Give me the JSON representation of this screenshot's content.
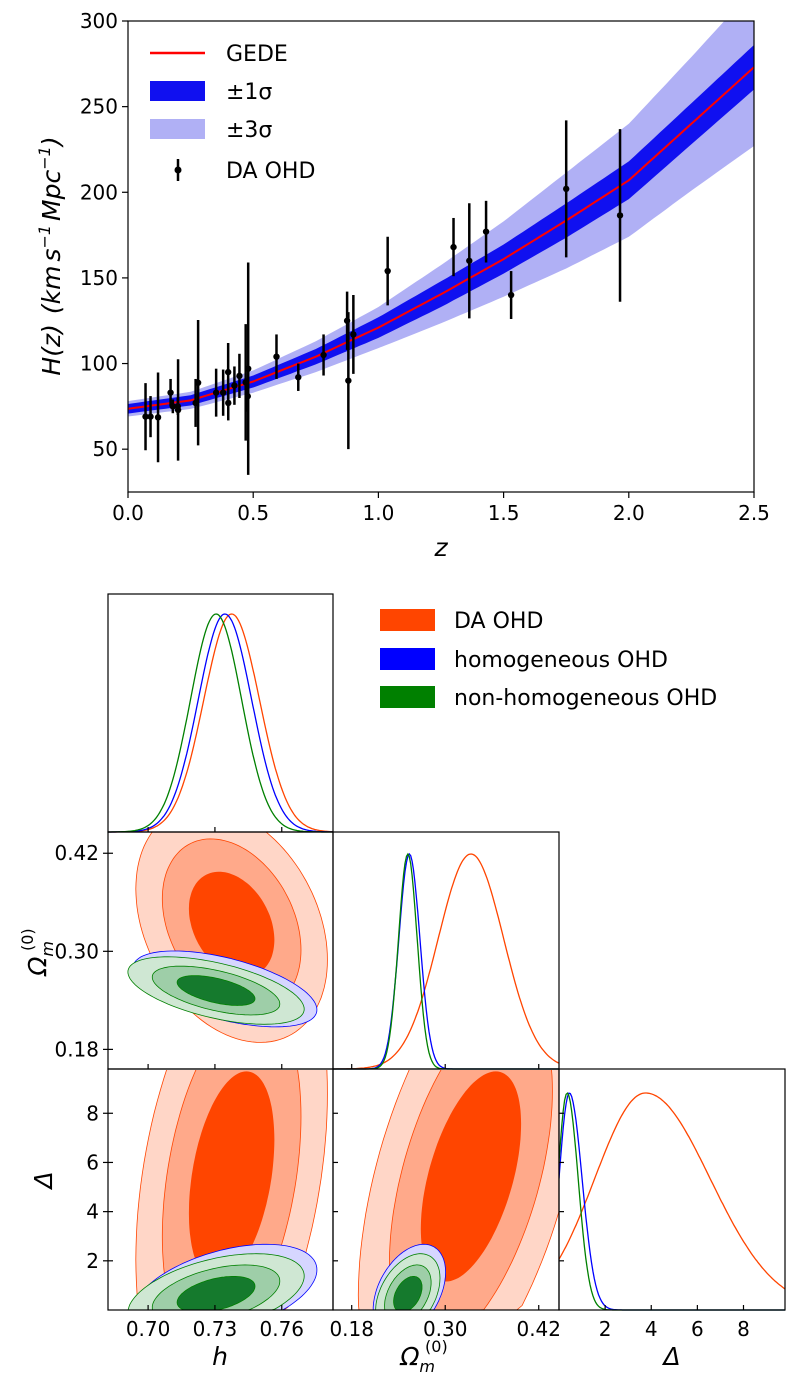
{
  "chart_data": [
    {
      "type": "line",
      "title": "",
      "xlabel": "z",
      "ylabel": "H(z) (km s^-1 Mpc^-1)",
      "ylabel_parts": [
        "H(z)",
        "(",
        "km",
        "s",
        "−1",
        "Mpc",
        "−1",
        ")"
      ],
      "xlim": [
        0.0,
        2.5
      ],
      "ylim": [
        25,
        300
      ],
      "xticks": [
        "0.0",
        "0.5",
        "1.0",
        "1.5",
        "2.0",
        "2.5"
      ],
      "yticks": [
        "50",
        "100",
        "150",
        "200",
        "250",
        "300"
      ],
      "legend_position": "top-left",
      "legend": [
        {
          "label": "GEDE",
          "kind": "line",
          "color": "#ff0000"
        },
        {
          "label": "±1σ",
          "kind": "patch",
          "color": "#1010f0"
        },
        {
          "label": "±3σ",
          "kind": "patch",
          "color": "#b0b0f5"
        },
        {
          "label": "DA OHD",
          "kind": "errorbar",
          "color": "#000000"
        }
      ],
      "model": {
        "z": [
          0.0,
          0.25,
          0.5,
          0.75,
          1.0,
          1.25,
          1.5,
          1.75,
          2.0,
          2.25,
          2.5
        ],
        "H": [
          73.6,
          78.5,
          89.5,
          104,
          121,
          140.5,
          161,
          183.5,
          207,
          240,
          273
        ],
        "sigma1_half_width": [
          2.8,
          3.0,
          3.5,
          4.5,
          6,
          7.5,
          8.5,
          10,
          11,
          12,
          13
        ],
        "sigma3_half_width": [
          4.5,
          5.0,
          6.5,
          9,
          12,
          17,
          22,
          28,
          33,
          39,
          46
        ]
      },
      "ohd_points": [
        {
          "z": 0.07,
          "H": 69,
          "err": 19.6
        },
        {
          "z": 0.09,
          "H": 69,
          "err": 12
        },
        {
          "z": 0.12,
          "H": 68.6,
          "err": 26.2
        },
        {
          "z": 0.17,
          "H": 83,
          "err": 8
        },
        {
          "z": 0.179,
          "H": 75,
          "err": 4
        },
        {
          "z": 0.199,
          "H": 75,
          "err": 5
        },
        {
          "z": 0.2,
          "H": 72.9,
          "err": 29.6
        },
        {
          "z": 0.27,
          "H": 77,
          "err": 14
        },
        {
          "z": 0.28,
          "H": 88.8,
          "err": 36.6
        },
        {
          "z": 0.352,
          "H": 83,
          "err": 14
        },
        {
          "z": 0.38,
          "H": 83,
          "err": 13.5
        },
        {
          "z": 0.4,
          "H": 95,
          "err": 17
        },
        {
          "z": 0.4004,
          "H": 77,
          "err": 10.2
        },
        {
          "z": 0.425,
          "H": 87.1,
          "err": 11.2
        },
        {
          "z": 0.445,
          "H": 92.8,
          "err": 12.9
        },
        {
          "z": 0.47,
          "H": 89,
          "err": 34
        },
        {
          "z": 0.4783,
          "H": 80.9,
          "err": 9
        },
        {
          "z": 0.48,
          "H": 97,
          "err": 62
        },
        {
          "z": 0.593,
          "H": 104,
          "err": 13
        },
        {
          "z": 0.68,
          "H": 92,
          "err": 8
        },
        {
          "z": 0.781,
          "H": 105,
          "err": 12
        },
        {
          "z": 0.875,
          "H": 125,
          "err": 17
        },
        {
          "z": 0.88,
          "H": 90,
          "err": 40
        },
        {
          "z": 0.9,
          "H": 117,
          "err": 23
        },
        {
          "z": 1.037,
          "H": 154,
          "err": 20
        },
        {
          "z": 1.3,
          "H": 168,
          "err": 17
        },
        {
          "z": 1.363,
          "H": 160,
          "err": 33.6
        },
        {
          "z": 1.43,
          "H": 177,
          "err": 18
        },
        {
          "z": 1.53,
          "H": 140,
          "err": 14
        },
        {
          "z": 1.75,
          "H": 202,
          "err": 40
        },
        {
          "z": 1.965,
          "H": 186.5,
          "err": 50.4
        }
      ]
    },
    {
      "type": "corner",
      "parameters": [
        "h",
        "Ω_m^(0)",
        "Δ"
      ],
      "axis_labels": {
        "h": "h",
        "omega_base": "Ω",
        "omega_sub": "m",
        "omega_sup": "(0)",
        "delta": "Δ"
      },
      "legend_position": "top-right",
      "legend": [
        {
          "label": "DA OHD",
          "color": "#ff4500"
        },
        {
          "label": "homogeneous OHD",
          "color": "#0000ff"
        },
        {
          "label": "non-homogeneous OHD",
          "color": "#008000"
        }
      ],
      "ranges": {
        "h": [
          0.682,
          0.783
        ],
        "omega": [
          0.156,
          0.446
        ],
        "delta": [
          0.0,
          9.8
        ]
      },
      "ticks": {
        "h": [
          "0.70",
          "0.73",
          "0.76"
        ],
        "omega": [
          "0.18",
          "0.30",
          "0.42"
        ],
        "delta_y": [
          "2",
          "4",
          "6",
          "8"
        ],
        "delta_x": [
          "2",
          "4",
          "6",
          "8"
        ]
      },
      "posteriors": [
        {
          "name": "DA OHD",
          "color": "#ff4500",
          "h": {
            "mean": 0.7375,
            "sd": 0.0125
          },
          "omega": {
            "mean": 0.333,
            "sd": 0.042
          },
          "delta": {
            "mode": 3.75,
            "sd_left": 2.2,
            "sd_right": 2.8
          },
          "corr_h_omega": -0.3,
          "corr_h_delta": 0.35,
          "corr_omega_delta": 0.5,
          "contour_fill": [
            "#ffd6c7",
            "#ffa98a",
            "#ff4500"
          ]
        },
        {
          "name": "homogeneous OHD",
          "color": "#0000ff",
          "h": {
            "mean": 0.7345,
            "sd": 0.012
          },
          "omega": {
            "mean": 0.254,
            "sd": 0.0135
          },
          "delta": {
            "mode": 0.45,
            "sd_left": 0.45,
            "sd_right": 0.55
          },
          "corr_h_omega": -0.55,
          "corr_h_delta": 0.45,
          "corr_omega_delta": 0.4,
          "contour_fill": [
            "#d6d6ff",
            "#aaaaf5",
            "#5555ee"
          ]
        },
        {
          "name": "non-homogeneous OHD",
          "color": "#008000",
          "h": {
            "mean": 0.7305,
            "sd": 0.0115
          },
          "omega": {
            "mean": 0.252,
            "sd": 0.012
          },
          "delta": {
            "mode": 0.35,
            "sd_left": 0.4,
            "sd_right": 0.48
          },
          "corr_h_omega": -0.55,
          "corr_h_delta": 0.45,
          "corr_omega_delta": 0.4,
          "contour_fill": [
            "#cfe7d3",
            "#9ecea8",
            "#157a2d"
          ]
        }
      ]
    }
  ]
}
